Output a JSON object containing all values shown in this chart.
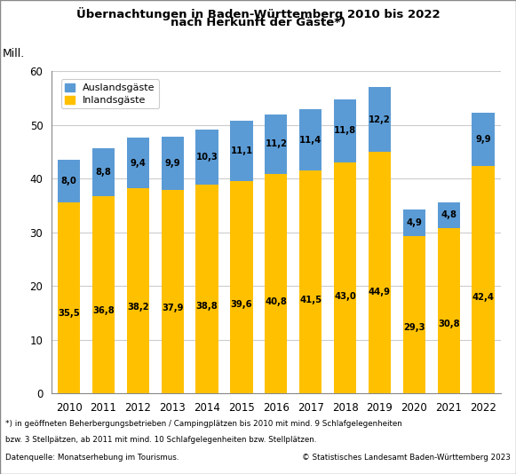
{
  "title_line1": "Übernachtungen in Baden-Württemberg 2010 bis 2022",
  "title_line2": "nach Herkunft der Gäste*)",
  "ylabel": "Mill.",
  "years": [
    2010,
    2011,
    2012,
    2013,
    2014,
    2015,
    2016,
    2017,
    2018,
    2019,
    2020,
    2021,
    2022
  ],
  "inland": [
    35.5,
    36.8,
    38.2,
    37.9,
    38.8,
    39.6,
    40.8,
    41.5,
    43.0,
    44.9,
    29.3,
    30.8,
    42.4
  ],
  "ausland": [
    8.0,
    8.8,
    9.4,
    9.9,
    10.3,
    11.1,
    11.2,
    11.4,
    11.8,
    12.2,
    4.9,
    4.8,
    9.9
  ],
  "inland_labels": [
    "35,5",
    "36,8",
    "38,2",
    "37,9",
    "38,8",
    "39,6",
    "40,8",
    "41,5",
    "43,0",
    "44,9",
    "29,3",
    "30,8",
    "42,4"
  ],
  "ausland_labels": [
    "8,0",
    "8,8",
    "9,4",
    "9,9",
    "10,3",
    "11,1",
    "11,2",
    "11,4",
    "11,8",
    "12,2",
    "4,9",
    "4,8",
    "9,9"
  ],
  "color_inland": "#FFC000",
  "color_ausland": "#5B9BD5",
  "color_grid": "#CCCCCC",
  "bar_width": 0.65,
  "ylim": [
    0,
    60
  ],
  "yticks": [
    0,
    10,
    20,
    30,
    40,
    50,
    60
  ],
  "legend_ausland": "Auslandsgäste",
  "legend_inland": "Inlandsgäste",
  "footnote_line1": "*) in geöffneten Beherbergungsbetrieben / Campingplätzen bis 2010 mit mind. 9 Schlafgelegenheiten",
  "footnote_line2": "bzw. 3 Stellpätzen, ab 2011 mit mind. 10 Schlafgelegenheiten bzw. Stellplätzen.",
  "footnote_line3_left": "Datenquelle: Monatserhebung im Tourismus.",
  "footnote_line3_right": "© Statistisches Landesamt Baden-Württemberg 2023",
  "background_color": "#FFFFFF",
  "plot_bg_color": "#FFFFFF",
  "border_color": "#888888"
}
